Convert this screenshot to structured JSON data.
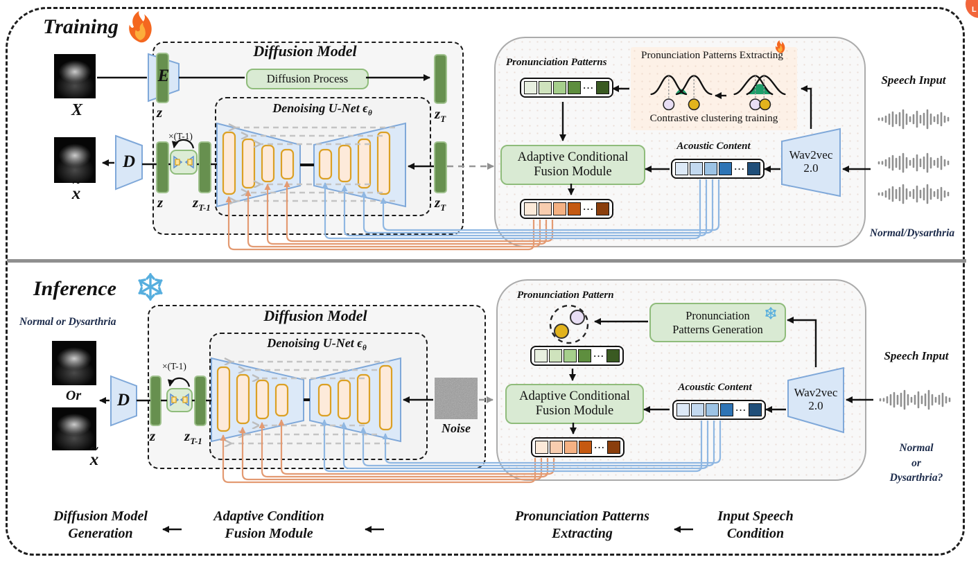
{
  "badge": {
    "label": "L"
  },
  "colors": {
    "flame": "#f4671f",
    "snowflake": "#56aede",
    "latent_bar": "#67904f",
    "latent_bar_border": "#9fc18d",
    "trapezoid_fill": "#d9e7f7",
    "trapezoid_border": "#7fa8d9",
    "unet_bar_fill": "#fdeada",
    "unet_bar_border": "#dba024",
    "pill_fill": "#d9ead3",
    "pill_border": "#8fbc7b",
    "orange_condition_line": "#e39a72",
    "blue_condition_line": "#8fb7e2",
    "cluster_green": "#1d9e6a",
    "cluster_purple": "#e8def4",
    "cluster_yellow": "#e2b31d"
  },
  "vectors": {
    "pronunciation": [
      "#e8f0e0",
      "#cfe3bd",
      "#a6cf8c",
      "#5e8e3e",
      "#3a5a22"
    ],
    "acoustic": [
      "#dde9f7",
      "#c3d9f0",
      "#9cc3e5",
      "#2e74b5",
      "#1f4e79"
    ],
    "fused": [
      "#fcead9",
      "#f8cdaf",
      "#f5b183",
      "#c55911",
      "#8a3e0c"
    ]
  },
  "training": {
    "title": "Training",
    "input_image_label": "X",
    "encoder_label": "E",
    "decoder_label": "D",
    "recon_label": "x",
    "recon_tilde": "~",
    "z": "z",
    "zT": "z",
    "zT_sub": "T",
    "z2": "z",
    "zT1": "z",
    "zT1_sub": "T-1",
    "zT_bottom": "z",
    "zT_bottom_sub": "T",
    "loop_label": "×(T-1)",
    "diffusion_title": "Diffusion Model",
    "diffusion_process": "Diffusion Process",
    "unet_title": "Denoising U-Net ϵ",
    "unet_title_sub": "θ",
    "pronunciation_patterns_label": "Pronunciation Patterns",
    "extracting_title": "Pronunciation Patterns Extracting",
    "clustering_caption": "Contrastive clustering training",
    "acfm_line1": "Adaptive Conditional",
    "acfm_line2": "Fusion Module",
    "acoustic_label": "Acoustic Content",
    "wav2vec_line1": "Wav2vec",
    "wav2vec_line2": "2.0",
    "speech_title": "Speech Input",
    "speech_caption": "Normal/Dysarthria"
  },
  "inference": {
    "title": "Inference",
    "output_caption": "Normal  or Dysarthria",
    "or_label": "Or",
    "decoder_label": "D",
    "recon_label": "x",
    "recon_tilde": "~",
    "z": "z",
    "zT1": "z",
    "zT1_sub": "T-1",
    "loop_label": "×(T-1)",
    "diffusion_title": "Diffusion Model",
    "unet_title": "Denoising U-Net ϵ",
    "unet_title_sub": "θ",
    "noise_label": "Noise",
    "pronunciation_pattern_label": "Pronunciation Pattern",
    "generation_line1": "Pronunciation",
    "generation_line2": "Patterns Generation",
    "acfm_line1": "Adaptive Conditional",
    "acfm_line2": "Fusion Module",
    "acoustic_label": "Acoustic Content",
    "wav2vec_line1": "Wav2vec",
    "wav2vec_line2": "2.0",
    "speech_title": "Speech Input",
    "speech_caption_line1": "Normal",
    "speech_caption_line2": "or",
    "speech_caption_line3": "Dysarthria?"
  },
  "flow": {
    "steps": [
      {
        "line1": "Diffusion Model",
        "line2": "Generation"
      },
      {
        "line1": "Adaptive Condition",
        "line2": "Fusion Module"
      },
      {
        "line1": "Pronunciation Patterns",
        "line2": "Extracting"
      },
      {
        "line1": "Input Speech",
        "line2": "Condition"
      }
    ]
  }
}
